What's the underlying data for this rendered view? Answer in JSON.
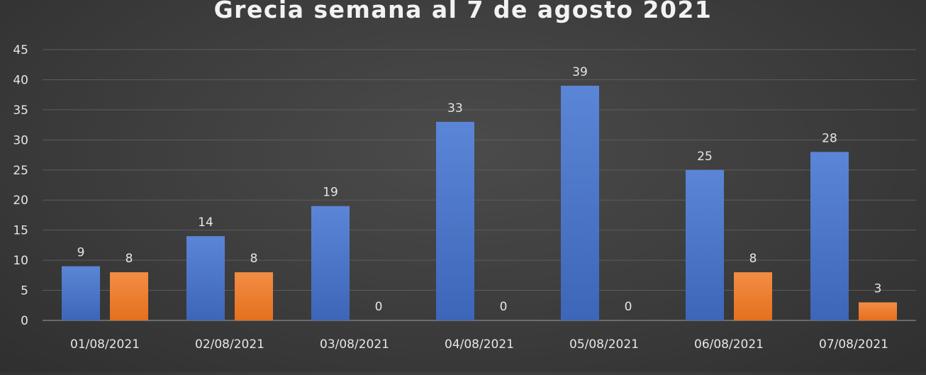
{
  "chart_data": {
    "type": "bar",
    "title": "Grecia semana al 7 de agosto 2021",
    "xlabel": "",
    "ylabel": "",
    "ylim": [
      0,
      45
    ],
    "yticks": [
      0,
      5,
      10,
      15,
      20,
      25,
      30,
      35,
      40,
      45
    ],
    "grid": true,
    "categories": [
      "01/08/2021",
      "02/08/2021",
      "03/08/2021",
      "04/08/2021",
      "05/08/2021",
      "06/08/2021",
      "07/08/2021"
    ],
    "series": [
      {
        "values": [
          9,
          14,
          19,
          33,
          39,
          25,
          28
        ],
        "color": "#4472c4"
      },
      {
        "values": [
          8,
          8,
          0,
          0,
          0,
          8,
          3
        ],
        "color": "#ed7d31"
      }
    ],
    "data_labels": true
  }
}
